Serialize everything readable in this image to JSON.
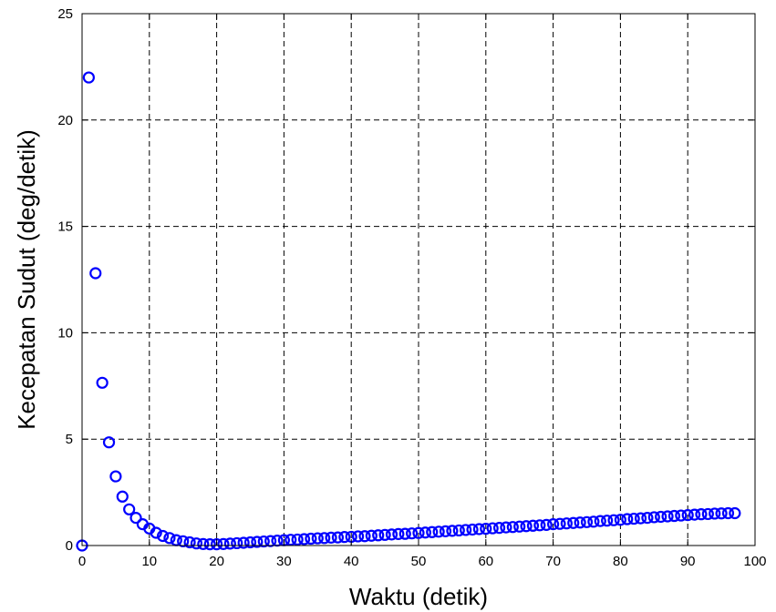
{
  "chart_data": {
    "type": "scatter",
    "title": "",
    "xlabel": "Waktu (detik)",
    "ylabel": "Kecepatan Sudut (deg/detik)",
    "xlim": [
      0,
      100
    ],
    "ylim": [
      0,
      25
    ],
    "xticks": [
      0,
      10,
      20,
      30,
      40,
      50,
      60,
      70,
      80,
      90,
      100
    ],
    "yticks": [
      0,
      5,
      10,
      15,
      20,
      25
    ],
    "xtick_labels": [
      "0",
      "10",
      "20",
      "30",
      "40",
      "50",
      "60",
      "70",
      "80",
      "90",
      "100"
    ],
    "ytick_labels": [
      "0",
      "5",
      "10",
      "15",
      "20",
      "25"
    ],
    "grid": true,
    "marker": "circle",
    "marker_color": "#0000ff",
    "series": [
      {
        "x": [
          0,
          1,
          2,
          3,
          4,
          5,
          6,
          7,
          8,
          9,
          10,
          11,
          12,
          13,
          14,
          15,
          16,
          17,
          18,
          19,
          20,
          21,
          22,
          23,
          24,
          25,
          26,
          27,
          28,
          29,
          30,
          31,
          32,
          33,
          34,
          35,
          36,
          37,
          38,
          39,
          40,
          41,
          42,
          43,
          44,
          45,
          46,
          47,
          48,
          49,
          50,
          51,
          52,
          53,
          54,
          55,
          56,
          57,
          58,
          59,
          60,
          61,
          62,
          63,
          64,
          65,
          66,
          67,
          68,
          69,
          70,
          71,
          72,
          73,
          74,
          75,
          76,
          77,
          78,
          79,
          80,
          81,
          82,
          83,
          84,
          85,
          86,
          87,
          88,
          89,
          90,
          91,
          92,
          93,
          94,
          95,
          96,
          97
        ],
        "y": [
          0,
          22.0,
          12.8,
          7.65,
          4.85,
          3.25,
          2.3,
          1.7,
          1.3,
          1.0,
          0.8,
          0.6,
          0.45,
          0.35,
          0.25,
          0.2,
          0.15,
          0.1,
          0.07,
          0.06,
          0.06,
          0.07,
          0.09,
          0.11,
          0.13,
          0.15,
          0.17,
          0.19,
          0.21,
          0.23,
          0.25,
          0.27,
          0.28,
          0.3,
          0.32,
          0.34,
          0.35,
          0.37,
          0.38,
          0.4,
          0.41,
          0.43,
          0.44,
          0.46,
          0.48,
          0.5,
          0.52,
          0.54,
          0.55,
          0.57,
          0.59,
          0.61,
          0.63,
          0.65,
          0.67,
          0.69,
          0.71,
          0.73,
          0.75,
          0.77,
          0.79,
          0.81,
          0.83,
          0.85,
          0.87,
          0.89,
          0.91,
          0.93,
          0.95,
          0.97,
          1.0,
          1.02,
          1.04,
          1.06,
          1.08,
          1.1,
          1.12,
          1.15,
          1.17,
          1.19,
          1.21,
          1.24,
          1.26,
          1.28,
          1.3,
          1.33,
          1.35,
          1.37,
          1.39,
          1.41,
          1.43,
          1.45,
          1.47,
          1.48,
          1.5,
          1.51,
          1.52,
          1.52
        ]
      }
    ]
  }
}
